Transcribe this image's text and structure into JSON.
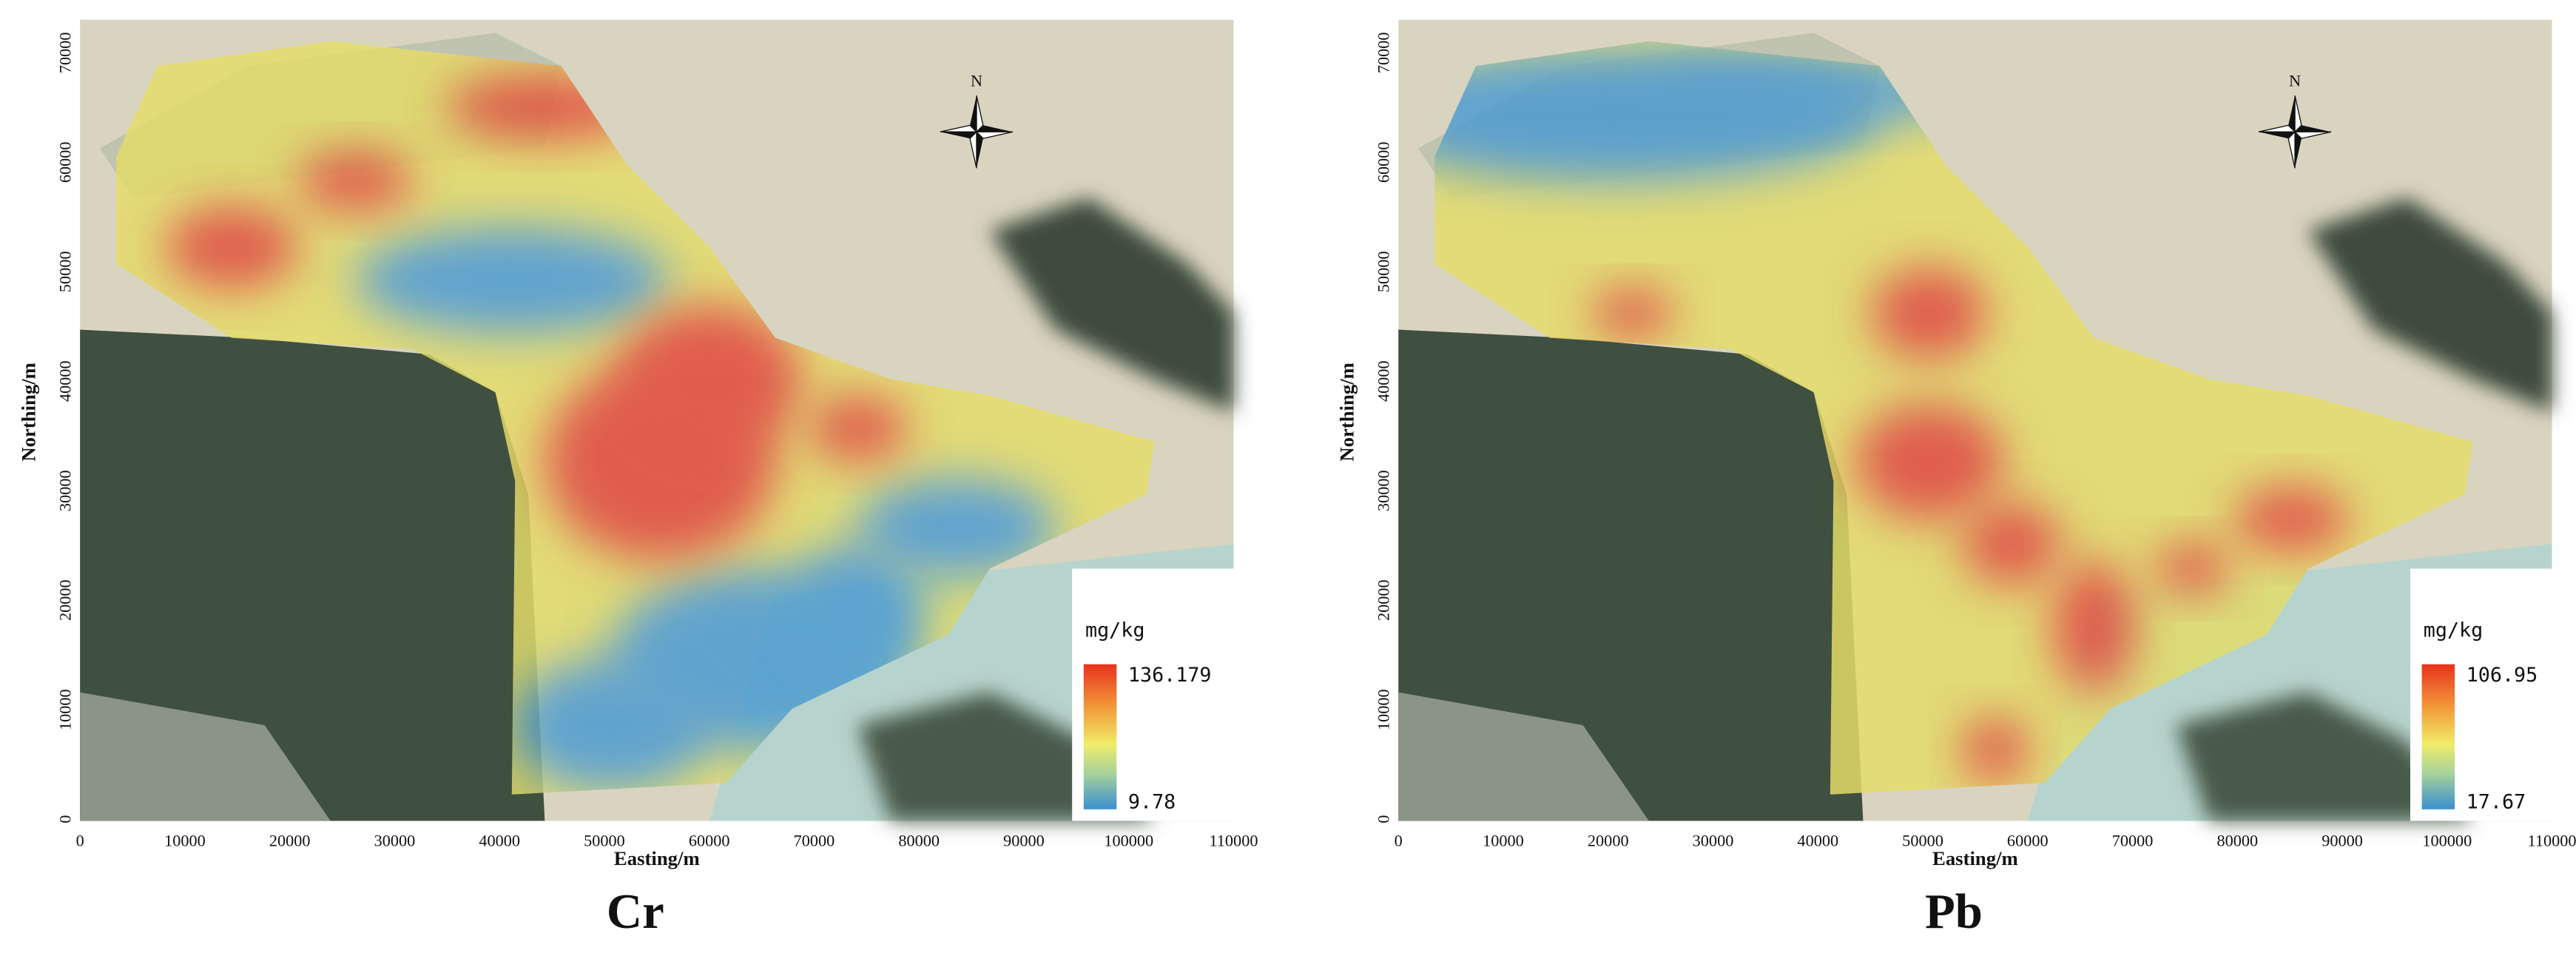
{
  "panels": [
    {
      "caption": "Cr",
      "x_label": "Easting/m",
      "y_label": "Northing/m",
      "xticks": [
        0,
        10000,
        20000,
        30000,
        40000,
        50000,
        60000,
        70000,
        80000,
        90000,
        100000,
        110000
      ],
      "yticks": [
        0,
        10000,
        20000,
        30000,
        40000,
        50000,
        60000,
        70000
      ],
      "legend": {
        "unit": "mg/kg",
        "max": 136.179,
        "min": 9.78
      },
      "compass": "N"
    },
    {
      "caption": "Pb",
      "x_label": "Easting/m",
      "y_label": "Northing/m",
      "xticks": [
        0,
        10000,
        20000,
        30000,
        40000,
        50000,
        60000,
        70000,
        80000,
        90000,
        100000,
        110000
      ],
      "yticks": [
        0,
        10000,
        20000,
        30000,
        40000,
        50000,
        60000,
        70000
      ],
      "legend": {
        "unit": "mg/kg",
        "max": 106.95,
        "min": 17.67
      },
      "compass": "N"
    }
  ]
}
